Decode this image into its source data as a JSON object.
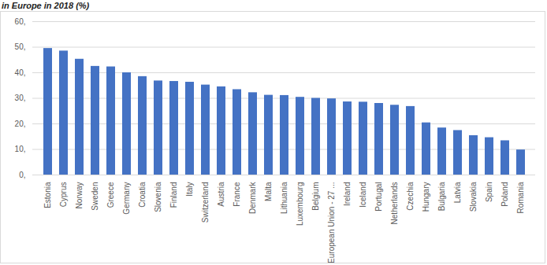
{
  "chart_data": {
    "type": "bar",
    "title": "in Europe in 2018 (%)",
    "categories": [
      "Estonia",
      "Cyprus",
      "Norway",
      "Sweden",
      "Greece",
      "Germany",
      "Croatia",
      "Slovenia",
      "Finland",
      "Italy",
      "Switzerland",
      "Austria",
      "France",
      "Denmark",
      "Malta",
      "Lithuania",
      "Luxembourg",
      "Belgium",
      "European Union - 27 ...",
      "Ireland",
      "Iceland",
      "Portugal",
      "Netherlands",
      "Czechia",
      "Hungary",
      "Bulgaria",
      "Latvia",
      "Slovakia",
      "Spain",
      "Poland",
      "Romania"
    ],
    "values": [
      49.5,
      48.5,
      45.3,
      42.5,
      42.3,
      40.0,
      38.5,
      36.8,
      36.6,
      36.3,
      35.2,
      34.5,
      33.4,
      32.2,
      31.2,
      31.1,
      30.4,
      30.0,
      29.8,
      28.6,
      28.5,
      28.0,
      27.3,
      26.8,
      20.4,
      18.4,
      17.4,
      15.4,
      14.6,
      13.4,
      9.8
    ],
    "color": "#4472c4",
    "ylim": [
      0,
      60
    ],
    "yticks": [
      {
        "value": 0,
        "label": "0,"
      },
      {
        "value": 10,
        "label": "10,"
      },
      {
        "value": 20,
        "label": "20,"
      },
      {
        "value": 30,
        "label": "30,"
      },
      {
        "value": 40,
        "label": "40,"
      },
      {
        "value": 50,
        "label": "50,"
      },
      {
        "value": 60,
        "label": "60,"
      }
    ],
    "grid": true
  }
}
